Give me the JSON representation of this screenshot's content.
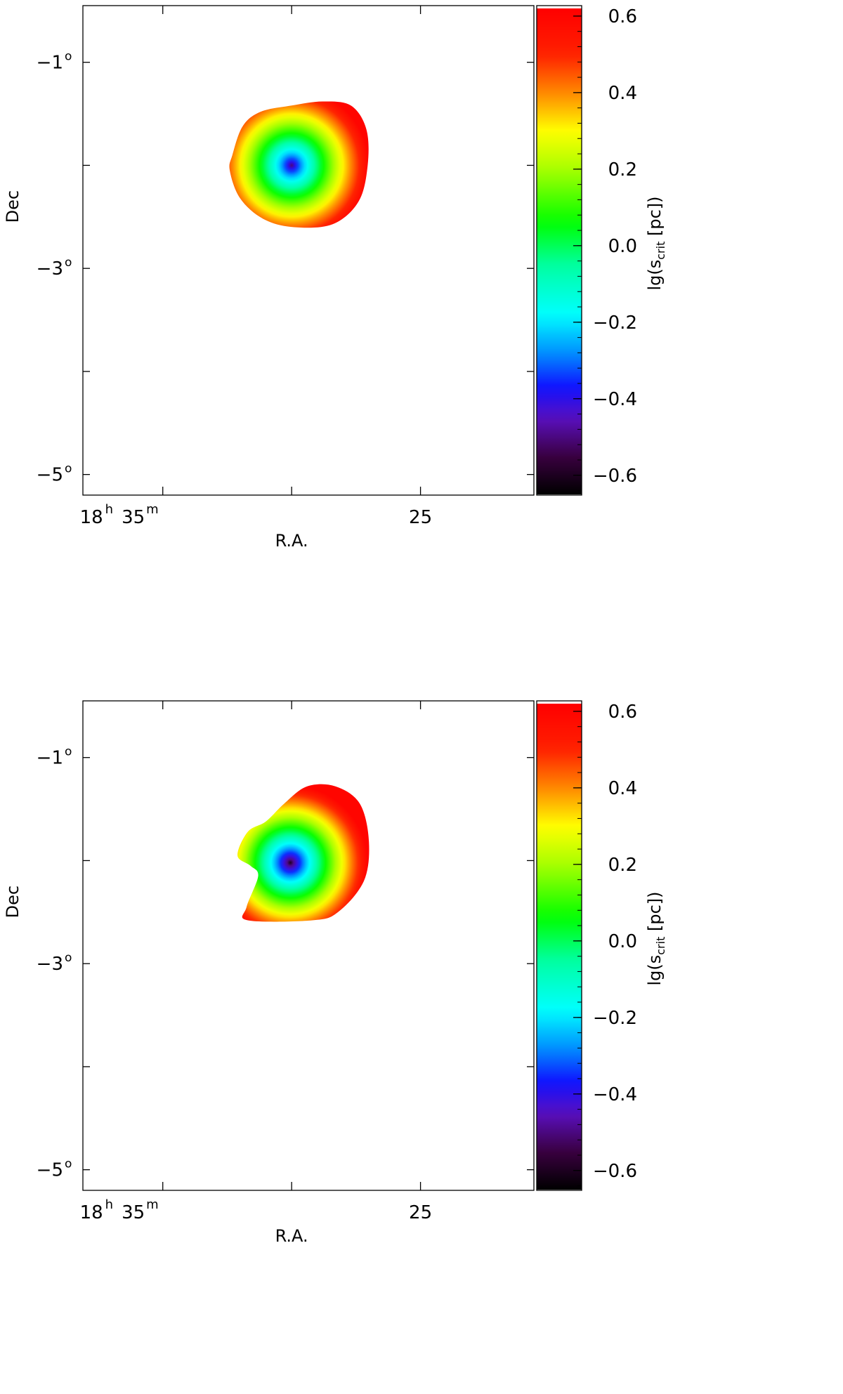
{
  "figure_title": "",
  "colors": {
    "axis": "#000000",
    "background": "#ffffff"
  },
  "colormap": {
    "name": "rainbow",
    "stops": [
      {
        "v": -0.65,
        "c": "#000000"
      },
      {
        "v": -0.55,
        "c": "#3a0040"
      },
      {
        "v": -0.45,
        "c": "#5a10c0"
      },
      {
        "v": -0.37,
        "c": "#1010ff"
      },
      {
        "v": -0.28,
        "c": "#0090ff"
      },
      {
        "v": -0.18,
        "c": "#00ffff"
      },
      {
        "v": -0.05,
        "c": "#00ffa0"
      },
      {
        "v": 0.06,
        "c": "#00ff00"
      },
      {
        "v": 0.2,
        "c": "#a8ff00"
      },
      {
        "v": 0.3,
        "c": "#ffff00"
      },
      {
        "v": 0.4,
        "c": "#ff8800"
      },
      {
        "v": 0.5,
        "c": "#ff2000"
      },
      {
        "v": 0.62,
        "c": "#ff0000"
      }
    ]
  },
  "chart_data": [
    {
      "type": "heatmap",
      "panel": "top",
      "title": "",
      "xlabel": "R.A.",
      "ylabel": "Dec",
      "x_ticks": [
        {
          "hours": "18",
          "minutes": "35",
          "x_min": 35,
          "hour_sup": "h",
          "min_sup": "m"
        },
        {
          "label": "25",
          "x_min": 25
        }
      ],
      "xlim_ra_min": [
        38.1,
        20.6
      ],
      "y_ticks": [
        {
          "label": "−1",
          "sup": "o",
          "y": -1
        },
        {
          "label": "−3",
          "sup": "o",
          "y": -3
        },
        {
          "label": "−5",
          "sup": "o",
          "y": -5
        }
      ],
      "y_minor_ticks": [
        -2,
        -4
      ],
      "ylim_deg": [
        -5.2,
        -0.45
      ],
      "center": {
        "ra_min": 30.0,
        "dec": -2.0
      },
      "center_value": -0.5,
      "outer_value": 0.6,
      "contour_shape": [
        [
          32.3,
          -1.9
        ],
        [
          31.9,
          -1.62
        ],
        [
          31.2,
          -1.48
        ],
        [
          30.0,
          -1.42
        ],
        [
          28.8,
          -1.38
        ],
        [
          27.7,
          -1.42
        ],
        [
          27.1,
          -1.65
        ],
        [
          27.05,
          -2.0
        ],
        [
          27.4,
          -2.35
        ],
        [
          28.4,
          -2.57
        ],
        [
          29.9,
          -2.6
        ],
        [
          31.1,
          -2.52
        ],
        [
          32.0,
          -2.32
        ],
        [
          32.4,
          -2.05
        ]
      ],
      "colorbar": {
        "label": "lg(s",
        "label_sub": "crit",
        "label_unit": " [pc])",
        "range": [
          -0.65,
          0.62
        ],
        "ticks": [
          "0.6",
          "0.4",
          "0.2",
          "0.0",
          "−0.2",
          "−0.4",
          "−0.6"
        ],
        "tick_values": [
          0.6,
          0.4,
          0.2,
          0.0,
          -0.2,
          -0.4,
          -0.6
        ]
      }
    },
    {
      "type": "heatmap",
      "panel": "bottom",
      "title": "",
      "xlabel": "R.A.",
      "ylabel": "Dec",
      "x_ticks": [
        {
          "hours": "18",
          "minutes": "35",
          "x_min": 35,
          "hour_sup": "h",
          "min_sup": "m"
        },
        {
          "label": "25",
          "x_min": 25
        }
      ],
      "xlim_ra_min": [
        38.1,
        20.6
      ],
      "y_ticks": [
        {
          "label": "−1",
          "sup": "o",
          "y": -1
        },
        {
          "label": "−3",
          "sup": "o",
          "y": -3
        },
        {
          "label": "−5",
          "sup": "o",
          "y": -5
        }
      ],
      "y_minor_ticks": [
        -2,
        -4
      ],
      "ylim_deg": [
        -5.2,
        -0.45
      ],
      "center": {
        "ra_min": 30.05,
        "dec": -2.02
      },
      "center_value": -0.6,
      "outer_value": 0.6,
      "contour_shape": [
        [
          32.1,
          -1.95
        ],
        [
          31.7,
          -1.72
        ],
        [
          31.0,
          -1.62
        ],
        [
          30.3,
          -1.45
        ],
        [
          29.4,
          -1.28
        ],
        [
          28.3,
          -1.28
        ],
        [
          27.35,
          -1.45
        ],
        [
          27.0,
          -1.82
        ],
        [
          27.2,
          -2.2
        ],
        [
          28.2,
          -2.5
        ],
        [
          29.2,
          -2.58
        ],
        [
          31.7,
          -2.58
        ],
        [
          31.75,
          -2.45
        ],
        [
          31.3,
          -2.15
        ],
        [
          31.6,
          -2.05
        ]
      ],
      "colorbar": {
        "label": "lg(s",
        "label_sub": "crit",
        "label_unit": " [pc])",
        "range": [
          -0.65,
          0.62
        ],
        "ticks": [
          "0.6",
          "0.4",
          "0.2",
          "0.0",
          "−0.2",
          "−0.4",
          "−0.6"
        ],
        "tick_values": [
          0.6,
          0.4,
          0.2,
          0.0,
          -0.2,
          -0.4,
          -0.6
        ]
      }
    }
  ]
}
